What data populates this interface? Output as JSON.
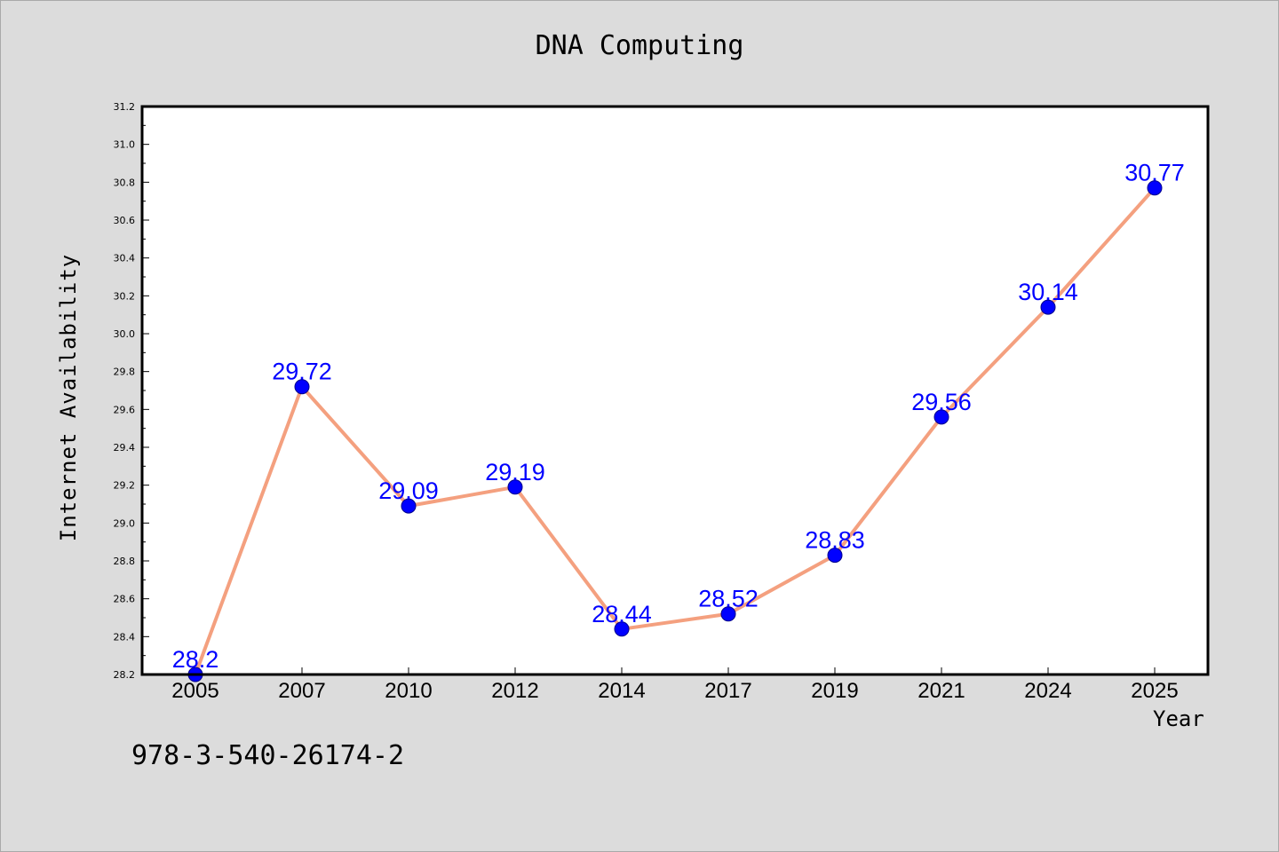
{
  "chart_data": {
    "type": "line",
    "title": "DNA Computing",
    "xlabel": "Year",
    "ylabel": "Internet Availability",
    "categories": [
      "2005",
      "2007",
      "2010",
      "2012",
      "2014",
      "2017",
      "2019",
      "2021",
      "2024",
      "2025"
    ],
    "series": [
      {
        "values": [
          28.2,
          29.72,
          29.09,
          29.19,
          28.44,
          28.52,
          28.83,
          29.56,
          30.14,
          30.77
        ]
      }
    ],
    "data_labels": [
      "28.2",
      "29.72",
      "29.09",
      "29.19",
      "28.44",
      "28.52",
      "28.83",
      "29.56",
      "30.14",
      "30.77"
    ],
    "ylim": [
      28.2,
      31.2
    ],
    "yticks": [
      "28.2",
      "28.4",
      "28.6",
      "28.8",
      "29.0",
      "29.2",
      "29.4",
      "29.6",
      "29.8",
      "30.0",
      "30.2",
      "30.4",
      "30.6",
      "30.8",
      "31.0",
      "31.2"
    ],
    "grid": false,
    "line_color": "#f4a07f",
    "marker_color": "#0000ff",
    "label_color": "#0000ff"
  },
  "footer": {
    "code": "978-3-540-26174-2"
  }
}
